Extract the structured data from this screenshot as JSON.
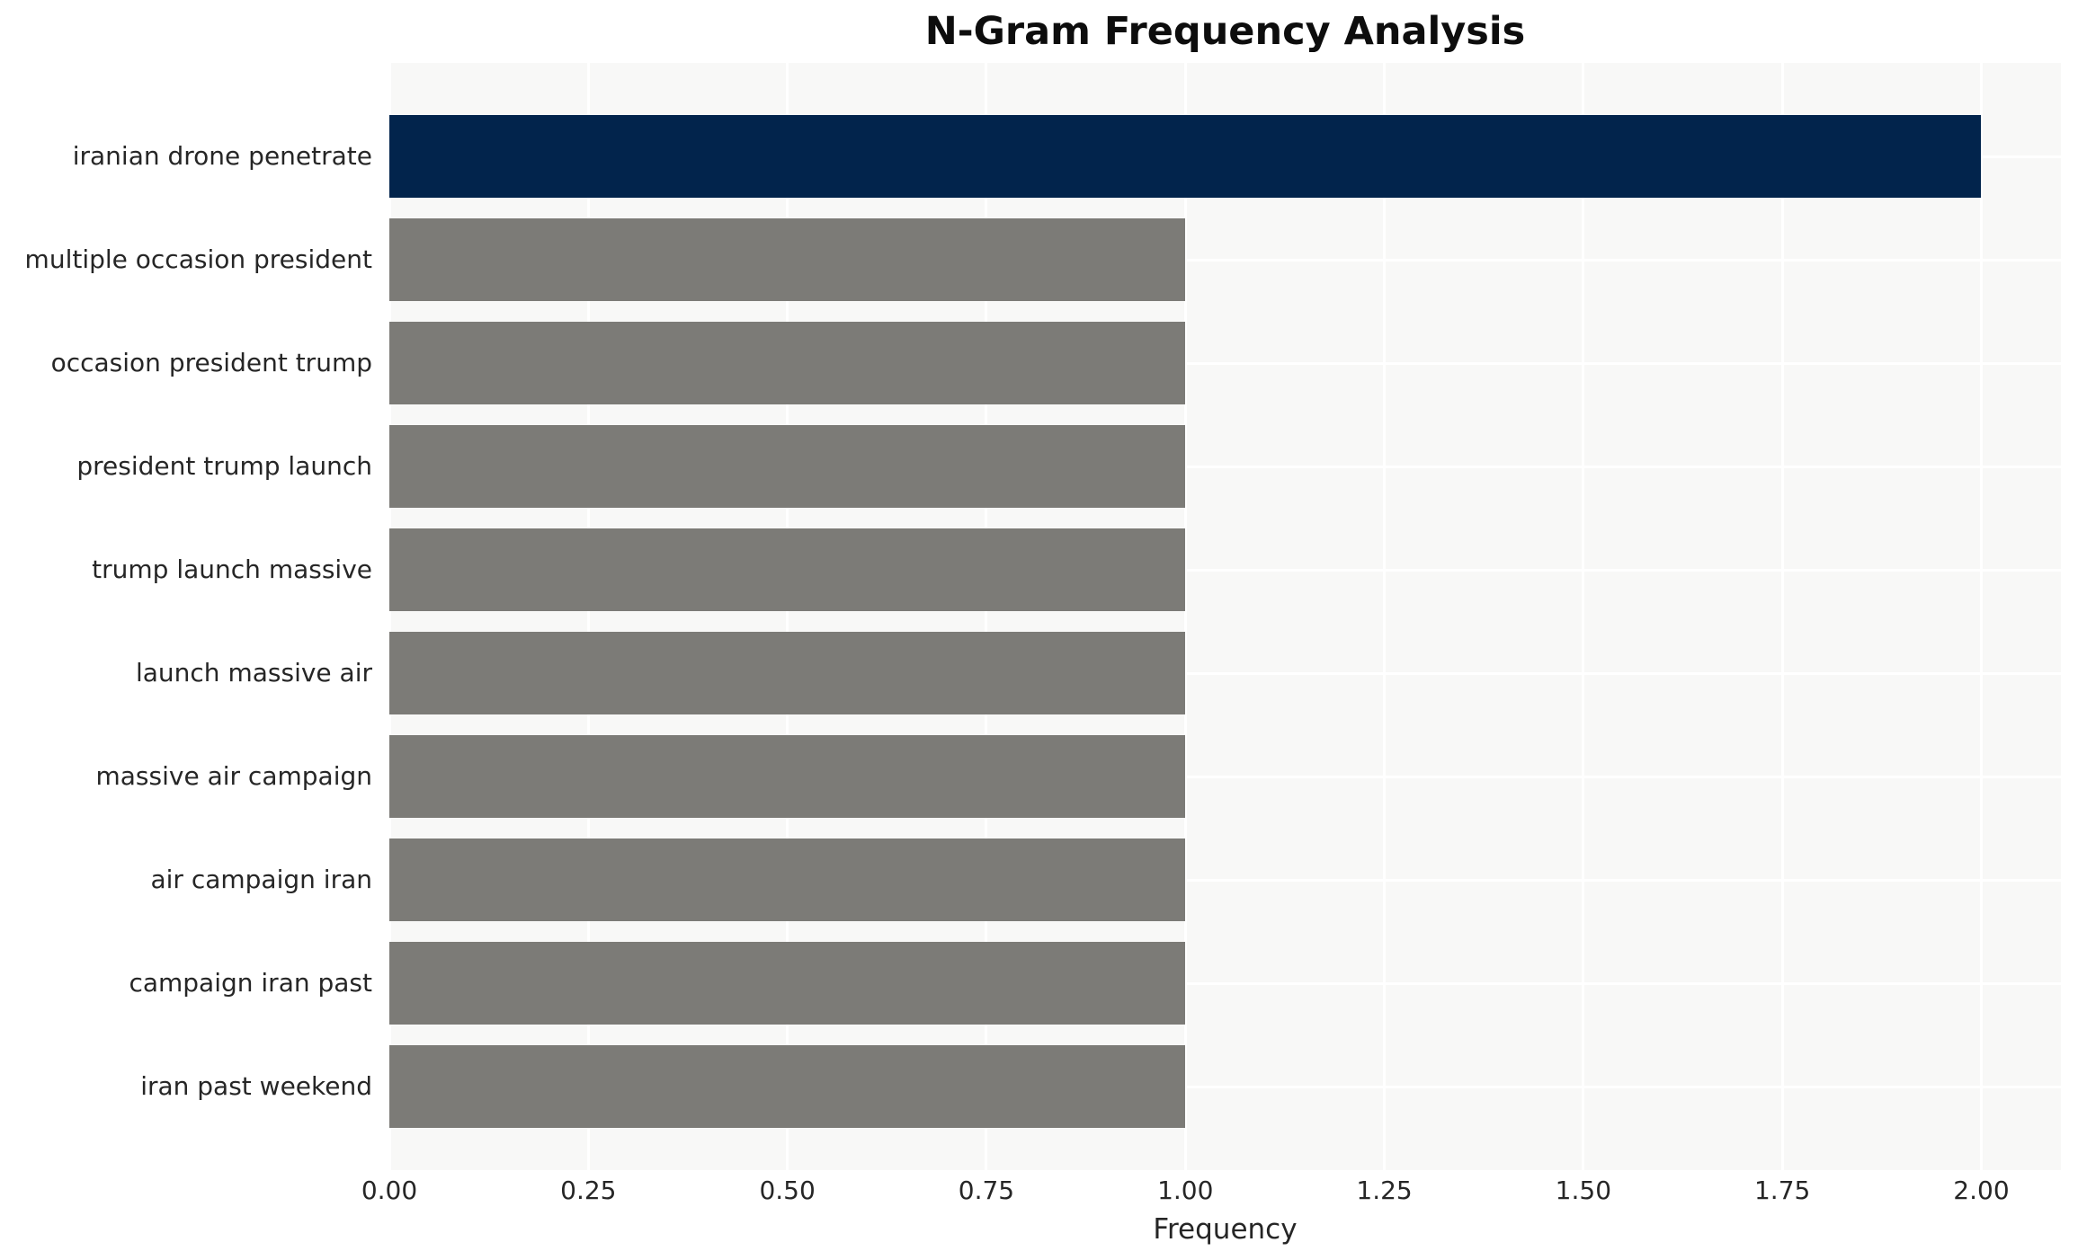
{
  "chart_data": {
    "type": "bar",
    "orientation": "horizontal",
    "title": "N-Gram Frequency Analysis",
    "xlabel": "Frequency",
    "ylabel": "",
    "categories": [
      "iranian drone penetrate",
      "multiple occasion president",
      "occasion president trump",
      "president trump launch",
      "trump launch massive",
      "launch massive air",
      "massive air campaign",
      "air campaign iran",
      "campaign iran past",
      "iran past weekend"
    ],
    "values": [
      2,
      1,
      1,
      1,
      1,
      1,
      1,
      1,
      1,
      1
    ],
    "bar_colors": [
      "#02244c",
      "#7c7b77",
      "#7c7b77",
      "#7c7b77",
      "#7c7b77",
      "#7c7b77",
      "#7c7b77",
      "#7c7b77",
      "#7c7b77",
      "#7c7b77"
    ],
    "x_ticks": [
      "0.00",
      "0.25",
      "0.50",
      "0.75",
      "1.00",
      "1.25",
      "1.50",
      "1.75",
      "2.00"
    ],
    "xlim": [
      0,
      2.1
    ],
    "grid": true,
    "gridline_color": "#ffffff",
    "plot_background": "#f8f8f7",
    "figure_background": "#ffffff",
    "text_color": "#262626",
    "legend": false
  }
}
